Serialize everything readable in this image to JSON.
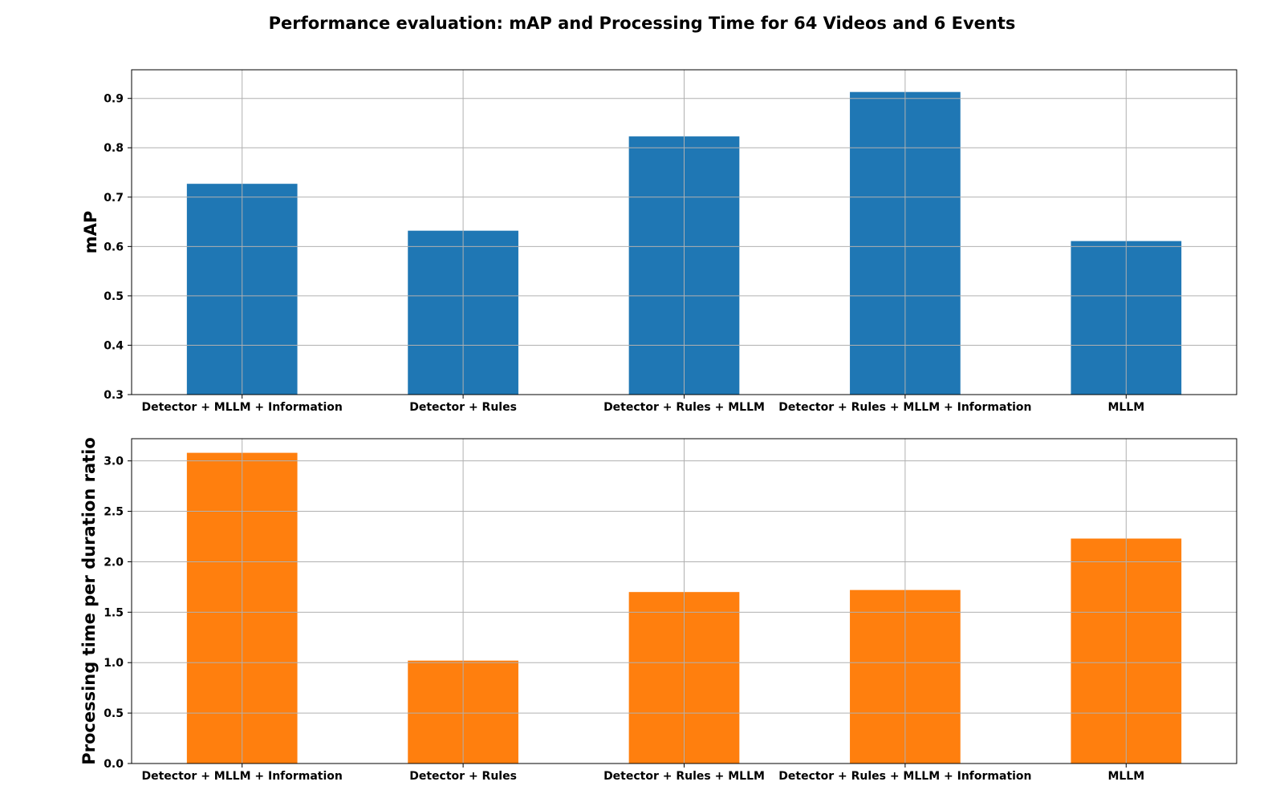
{
  "figure": {
    "title": "Performance evaluation: mAP and Processing Time for 64 Videos and 6 Events"
  },
  "chart_data": [
    {
      "type": "bar",
      "categories": [
        "Detector + MLLM + Information",
        "Detector + Rules",
        "Detector + Rules + MLLM",
        "Detector + Rules + MLLM + Information",
        "MLLM"
      ],
      "values": [
        0.727,
        0.632,
        0.823,
        0.913,
        0.611
      ],
      "ylabel": "mAP",
      "ylim": [
        0.3,
        0.958
      ],
      "yticks": [
        "0.3",
        "0.4",
        "0.5",
        "0.6",
        "0.7",
        "0.8",
        "0.9"
      ],
      "color": "#1f77b4",
      "grid": true
    },
    {
      "type": "bar",
      "categories": [
        "Detector + MLLM + Information",
        "Detector + Rules",
        "Detector + Rules + MLLM",
        "Detector + Rules + MLLM + Information",
        "MLLM"
      ],
      "values": [
        3.08,
        1.02,
        1.7,
        1.72,
        2.23
      ],
      "ylabel": "Processing time per duration ratio",
      "ylim": [
        0.0,
        3.22
      ],
      "yticks": [
        "0.0",
        "0.5",
        "1.0",
        "1.5",
        "2.0",
        "2.5",
        "3.0"
      ],
      "color": "#ff7f0e",
      "grid": true
    }
  ]
}
